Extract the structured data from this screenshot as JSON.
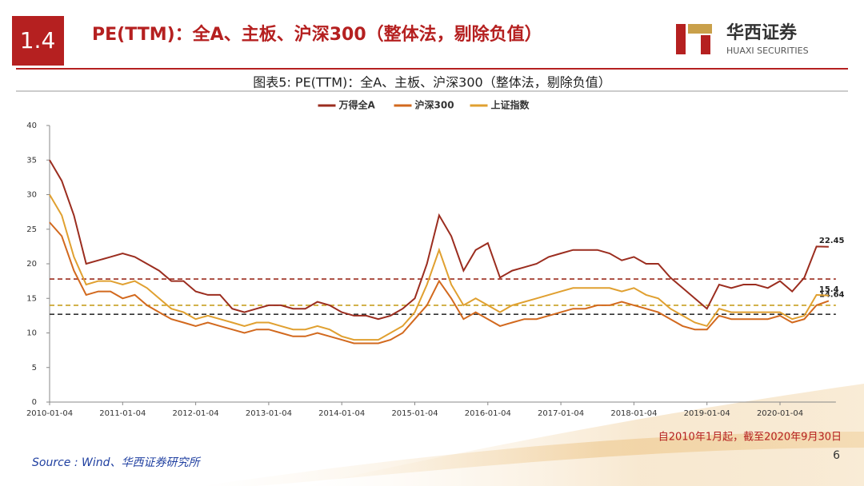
{
  "header": {
    "section": "1.4",
    "title": "PE(TTM)：全A、主板、沪深300（整体法，剔除负值）",
    "logo_cn": "华西证券",
    "logo_en": "HUAXI SECURITIES"
  },
  "chart_data": {
    "type": "line",
    "title": "图表5:  PE(TTM)：全A、主板、沪深300（整体法，剔除负值）",
    "categories": [
      "2010-01-04",
      null,
      null,
      null,
      null,
      null,
      "2011-01-04",
      null,
      null,
      null,
      null,
      null,
      "2012-01-04",
      null,
      null,
      null,
      null,
      null,
      "2013-01-04",
      null,
      null,
      null,
      null,
      null,
      "2014-01-04",
      null,
      null,
      null,
      null,
      null,
      "2015-01-04",
      null,
      null,
      null,
      null,
      null,
      "2016-01-04",
      null,
      null,
      null,
      null,
      null,
      "2017-01-04",
      null,
      null,
      null,
      null,
      null,
      "2018-01-04",
      null,
      null,
      null,
      null,
      null,
      "2019-01-04",
      null,
      null,
      null,
      null,
      null,
      "2020-01-04",
      null,
      null,
      null,
      null
    ],
    "series": [
      {
        "name": "万得全A",
        "color": "#9b2d1f",
        "end_label": 22.45,
        "values": [
          35,
          32,
          27,
          20,
          20.5,
          21,
          21.5,
          21,
          20,
          19,
          17.5,
          17.5,
          16,
          15.5,
          15.5,
          13.5,
          13,
          13.5,
          14,
          14,
          13.5,
          13.5,
          14.5,
          14,
          13,
          12.5,
          12.5,
          12,
          12.5,
          13.5,
          15,
          20,
          27,
          24,
          19,
          22,
          23,
          18,
          19,
          19.5,
          20,
          21,
          21.5,
          22,
          22,
          22,
          21.5,
          20.5,
          21,
          20,
          20,
          18,
          16.5,
          15,
          13.5,
          17,
          16.5,
          17,
          17,
          16.5,
          17.5,
          16,
          18,
          22.5,
          22.45
        ]
      },
      {
        "name": "沪深300",
        "color": "#d2691e",
        "end_label": 14.64,
        "values": [
          26,
          24,
          19,
          15.5,
          16,
          16,
          15,
          15.5,
          14,
          13,
          12,
          11.5,
          11,
          11.5,
          11,
          10.5,
          10,
          10.5,
          10.5,
          10,
          9.5,
          9.5,
          10,
          9.5,
          9,
          8.5,
          8.5,
          8.5,
          9,
          10,
          12,
          14,
          17.5,
          15,
          12,
          13,
          12,
          11,
          11.5,
          12,
          12,
          12.5,
          13,
          13.5,
          13.5,
          14,
          14,
          14.5,
          14,
          13.5,
          13,
          12,
          11,
          10.5,
          10.5,
          12.5,
          12,
          12,
          12,
          12,
          12.5,
          11.5,
          12,
          14,
          14.64
        ]
      },
      {
        "name": "上证指数",
        "color": "#e0a030",
        "end_label": 15.4,
        "values": [
          30,
          27,
          21,
          17,
          17.5,
          17.5,
          17,
          17.5,
          16.5,
          15,
          13.5,
          13,
          12,
          12.5,
          12,
          11.5,
          11,
          11.5,
          11.5,
          11,
          10.5,
          10.5,
          11,
          10.5,
          9.5,
          9,
          9,
          9,
          10,
          11,
          13,
          17,
          22,
          17,
          14,
          15,
          14,
          13,
          14,
          14.5,
          15,
          15.5,
          16,
          16.5,
          16.5,
          16.5,
          16.5,
          16,
          16.5,
          15.5,
          15,
          13.5,
          12.5,
          11.5,
          11,
          13.5,
          13,
          13,
          13,
          13,
          13,
          12,
          12.5,
          15.5,
          15.4
        ]
      }
    ],
    "reference_lines": [
      {
        "value": 17.8,
        "color": "#9b2d1f"
      },
      {
        "value": 14.0,
        "color": "#c8a020"
      },
      {
        "value": 12.7,
        "color": "#333333"
      }
    ],
    "ylim": [
      0,
      40
    ],
    "yticks": [
      0,
      5,
      10,
      15,
      20,
      25,
      30,
      35,
      40
    ],
    "legend": "top",
    "note": "自2010年1月起，截至2020年9月30日"
  },
  "footer": {
    "source": "Source : Wind、华西证券研究所",
    "page": "6"
  }
}
